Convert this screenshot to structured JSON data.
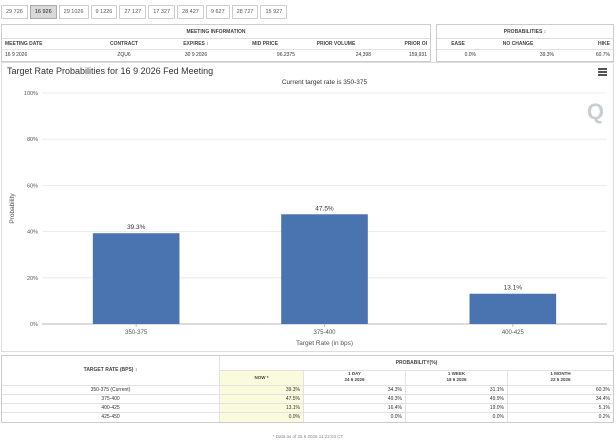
{
  "tabs": [
    "29 726",
    "16 926",
    "29 1026",
    "9 1226",
    "27 127",
    "17 327",
    "28 427",
    "9 627",
    "28 727",
    "15 927"
  ],
  "active_tab": 1,
  "meeting_info": {
    "header": "MEETING INFORMATION",
    "columns": [
      "MEETING DATE",
      "CONTRACT",
      "EXPIRES ↕",
      "MID PRICE",
      "PRIOR VOLUME",
      "PRIOR OI"
    ],
    "row": [
      "16 9 2026",
      "ZQU6",
      "30 9 2026",
      "96.2375",
      "24,398",
      "159,931"
    ]
  },
  "probability_top": {
    "header": "PROBABILITIES ↕",
    "columns": [
      "EASE",
      "NO CHANGE",
      "HIKE"
    ],
    "row": [
      "0.0%",
      "39.3%",
      "60.7%"
    ]
  },
  "chart": {
    "title": "Target Rate Probabilities for 16 9 2026 Fed Meeting",
    "logo": "Q"
  },
  "chart_data": {
    "type": "bar",
    "title": "Target Rate Probabilities for 16 9 2026 Fed Meeting",
    "subtitle": "Current target rate is 350-375",
    "categories": [
      "350-375",
      "375-400",
      "400-425"
    ],
    "values": [
      39.3,
      47.5,
      13.1
    ],
    "value_labels": [
      "39.3%",
      "47.5%",
      "13.1%"
    ],
    "xlabel": "Target Rate (in bps)",
    "ylabel": "Probability",
    "ylim": [
      0,
      100
    ],
    "yticks": [
      0,
      20,
      40,
      60,
      80,
      100
    ],
    "ytick_labels": [
      "0%",
      "20%",
      "40%",
      "60%",
      "80%",
      "100%"
    ],
    "bar_color": "#4a74b0",
    "grid": true
  },
  "bottom_table": {
    "rate_header": "TARGET RATE (BPS) ↕",
    "prob_header": "PROBABILITY(%)",
    "columns": [
      {
        "label": "NOW *",
        "sub": ""
      },
      {
        "label": "1 DAY",
        "sub": "24 6 2026"
      },
      {
        "label": "1 WEEK",
        "sub": "18 6 2026"
      },
      {
        "label": "1 MONTH",
        "sub": "22 5 2026"
      }
    ],
    "rows": [
      {
        "rate": "350-375 (Current)",
        "values": [
          "39.3%",
          "34.3%",
          "31.1%",
          "60.3%"
        ]
      },
      {
        "rate": "375-400",
        "values": [
          "47.5%",
          "49.3%",
          "49.9%",
          "34.4%"
        ]
      },
      {
        "rate": "400-425",
        "values": [
          "13.1%",
          "16.4%",
          "19.0%",
          "5.1%"
        ]
      },
      {
        "rate": "425-450",
        "values": [
          "0.0%",
          "0.0%",
          "0.0%",
          "0.2%"
        ]
      }
    ],
    "footnote": "* Data as of 25 6 2026 11:22:03 CT"
  }
}
